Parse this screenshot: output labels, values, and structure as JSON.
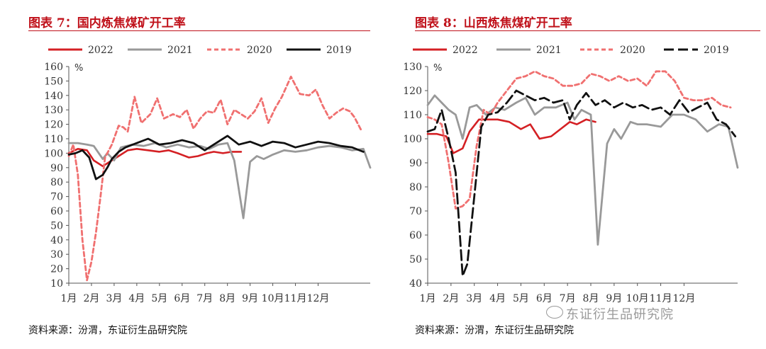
{
  "charts": [
    {
      "id": "p1",
      "title": "图表 7：国内炼焦煤矿开工率",
      "source": "资料来源：汾渭，东证衍生品研究院"
    },
    {
      "id": "p2",
      "title": "图表 8：山西炼焦煤矿开工率",
      "source": "资料来源：汾渭，东证衍生品研究院"
    }
  ],
  "watermark": "东证衍生品研究院",
  "watermark_icon": "wechat-icon",
  "colors": {
    "s2022": "#d42024",
    "s2021": "#999999",
    "s2020": "#f07070",
    "s2019": "#111111",
    "title": "#c0111a"
  },
  "chart_data": [
    {
      "type": "line",
      "unit": "%",
      "ylim": [
        10,
        160
      ],
      "yticks": [
        10,
        20,
        30,
        40,
        50,
        60,
        70,
        80,
        90,
        100,
        110,
        120,
        130,
        140,
        150,
        160
      ],
      "xlim": [
        0,
        13.3
      ],
      "xtick_labels": [
        "1月",
        "2月",
        "3月",
        "4月",
        "5月",
        "6月",
        "7月",
        "8月",
        "9月",
        "10月",
        "11月",
        "12月"
      ],
      "legend": "top",
      "grid": false,
      "series": [
        {
          "name": "2022",
          "style": "solid",
          "color": "#d42024",
          "x": [
            0,
            0.4,
            0.8,
            1.1,
            1.5,
            1.8,
            2.2,
            2.6,
            3,
            3.5,
            4,
            4.4,
            4.8,
            5.3,
            5.7,
            6.1,
            6.4,
            6.8,
            7.2,
            7.6
          ],
          "y": [
            100,
            103,
            102,
            95,
            91,
            94,
            98,
            102,
            103,
            102,
            101,
            102,
            100,
            97,
            98,
            100,
            101,
            100,
            101,
            101
          ]
        },
        {
          "name": "2021",
          "style": "solid",
          "color": "#999999",
          "x": [
            0,
            0.4,
            0.8,
            1.1,
            1.5,
            1.7,
            2,
            2.3,
            2.8,
            3.3,
            3.8,
            4.3,
            4.8,
            5.3,
            5.8,
            6.2,
            6.6,
            7,
            7.3,
            7.7,
            8,
            8.3,
            8.6,
            9,
            9.5,
            10,
            10.5,
            11,
            11.5,
            12,
            12.5,
            13,
            13.3
          ],
          "y": [
            107,
            107,
            106,
            105,
            96,
            100,
            95,
            104,
            106,
            105,
            107,
            104,
            106,
            104,
            105,
            103,
            106,
            107,
            95,
            55,
            94,
            98,
            96,
            99,
            102,
            101,
            102,
            104,
            105,
            104,
            102,
            103,
            90
          ]
        },
        {
          "name": "2020",
          "style": "dashed",
          "color": "#f07070",
          "x": [
            0,
            0.2,
            0.4,
            0.6,
            0.8,
            1,
            1.2,
            1.4,
            1.6,
            1.9,
            2.2,
            2.4,
            2.6,
            2.9,
            3.2,
            3.6,
            3.9,
            4.2,
            4.6,
            4.9,
            5.2,
            5.5,
            5.8,
            6.1,
            6.4,
            6.7,
            7,
            7.3,
            7.6,
            7.9,
            8.2,
            8.5,
            8.8,
            9.1,
            9.4,
            9.8,
            10.2,
            10.6,
            10.9,
            11.2,
            11.5,
            11.8,
            12.1,
            12.4,
            12.6,
            12.9
          ],
          "y": [
            98,
            106,
            85,
            40,
            12,
            25,
            45,
            70,
            97,
            106,
            119,
            118,
            115,
            139,
            121,
            127,
            138,
            124,
            127,
            125,
            130,
            117,
            124,
            129,
            128,
            137,
            120,
            130,
            127,
            124,
            129,
            138,
            121,
            131,
            139,
            153,
            141,
            140,
            144,
            133,
            124,
            128,
            131,
            129,
            125,
            116
          ]
        },
        {
          "name": "2019",
          "style": "solid",
          "color": "#111111",
          "x": [
            0,
            0.3,
            0.6,
            0.9,
            1.2,
            1.5,
            1.7,
            1.9,
            2.2,
            2.5,
            3,
            3.5,
            4,
            4.5,
            5,
            5.5,
            6,
            6.3,
            6.6,
            7,
            7.5,
            8,
            8.5,
            9,
            9.5,
            10,
            10.5,
            11,
            11.5,
            12,
            12.5,
            13
          ],
          "y": [
            99,
            100,
            102,
            97,
            82,
            85,
            90,
            96,
            101,
            104,
            107,
            110,
            106,
            107,
            109,
            107,
            102,
            105,
            108,
            112,
            106,
            108,
            105,
            108,
            107,
            104,
            106,
            108,
            107,
            105,
            104,
            101
          ]
        }
      ]
    },
    {
      "type": "line",
      "unit": "%",
      "ylim": [
        40,
        130
      ],
      "yticks": [
        40,
        50,
        60,
        70,
        80,
        90,
        100,
        110,
        120,
        130
      ],
      "xlim": [
        0,
        13.3
      ],
      "xtick_labels": [
        "1月",
        "2月",
        "3月",
        "4月",
        "5月",
        "6月",
        "7月",
        "8月",
        "9月",
        "10月",
        "11月",
        "12月"
      ],
      "legend": "top",
      "grid": false,
      "series": [
        {
          "name": "2022",
          "style": "solid",
          "color": "#d42024",
          "x": [
            0,
            0.4,
            0.8,
            1.1,
            1.5,
            1.8,
            2.2,
            2.6,
            3,
            3.5,
            4,
            4.4,
            4.8,
            5.3,
            5.7,
            6.1,
            6.4,
            6.8,
            7.2
          ],
          "y": [
            102,
            102,
            101,
            94,
            96,
            103,
            108,
            108,
            108,
            107,
            104,
            106,
            100,
            101,
            104,
            107,
            106,
            108,
            107
          ]
        },
        {
          "name": "2021",
          "style": "solid",
          "color": "#999999",
          "x": [
            0,
            0.3,
            0.6,
            0.9,
            1.2,
            1.5,
            1.8,
            2.1,
            2.5,
            2.9,
            3.3,
            3.8,
            4.2,
            4.6,
            5,
            5.5,
            6,
            6.3,
            6.6,
            7,
            7.3,
            7.7,
            8,
            8.3,
            8.7,
            9,
            9.4,
            10,
            10.5,
            11,
            11.5,
            12,
            12.5,
            12.9,
            13.3
          ],
          "y": [
            114,
            118,
            115,
            112,
            110,
            100,
            113,
            114,
            110,
            113,
            112,
            115,
            117,
            110,
            113,
            113,
            115,
            108,
            112,
            110,
            56,
            98,
            104,
            100,
            107,
            106,
            106,
            105,
            110,
            110,
            108,
            103,
            106,
            105,
            88
          ]
        },
        {
          "name": "2020",
          "style": "dashed",
          "color": "#f07070",
          "x": [
            0,
            0.3,
            0.6,
            0.9,
            1.2,
            1.5,
            1.8,
            2.1,
            2.4,
            2.7,
            3,
            3.4,
            3.8,
            4.2,
            4.6,
            5,
            5.4,
            5.8,
            6.2,
            6.6,
            7,
            7.4,
            7.8,
            8.2,
            8.6,
            9,
            9.4,
            9.8,
            10.2,
            10.6,
            11,
            11.4,
            11.8,
            12.2,
            12.6,
            13
          ],
          "y": [
            109,
            108,
            106,
            90,
            71,
            72,
            75,
            97,
            112,
            110,
            115,
            120,
            125,
            126,
            128,
            126,
            125,
            122,
            122,
            123,
            127,
            126,
            124,
            126,
            124,
            125,
            122,
            128,
            128,
            124,
            117,
            116,
            116,
            117,
            114,
            113
          ]
        },
        {
          "name": "2019",
          "style": "dashed",
          "color": "#111111",
          "x": [
            0,
            0.3,
            0.6,
            0.9,
            1.2,
            1.5,
            1.7,
            2,
            2.3,
            2.6,
            3,
            3.4,
            3.8,
            4.2,
            4.6,
            5,
            5.4,
            5.8,
            6.1,
            6.4,
            6.8,
            7.2,
            7.6,
            8,
            8.4,
            8.8,
            9.2,
            9.6,
            10,
            10.4,
            10.8,
            11.2,
            11.6,
            12,
            12.4,
            12.8,
            13.2
          ],
          "y": [
            103,
            104,
            112,
            100,
            86,
            43,
            48,
            76,
            105,
            110,
            111,
            115,
            120,
            118,
            116,
            117,
            115,
            116,
            108,
            114,
            119,
            114,
            116,
            113,
            115,
            113,
            114,
            112,
            113,
            110,
            116,
            111,
            113,
            115,
            108,
            106,
            101
          ]
        }
      ]
    }
  ]
}
